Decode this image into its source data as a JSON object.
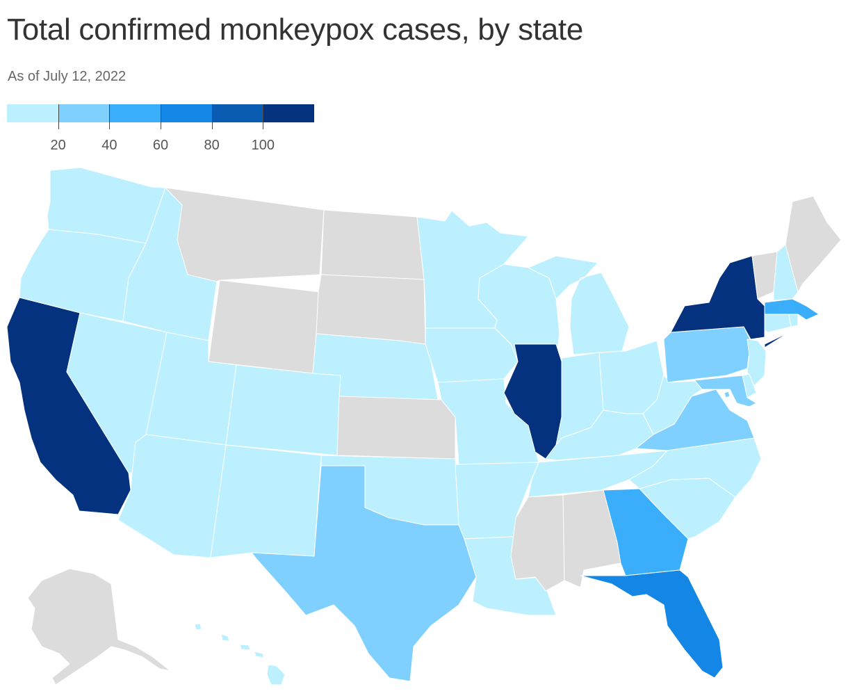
{
  "title": "Total confirmed monkeypox cases, by state",
  "subtitle": "As of July 12, 2022",
  "legend": {
    "colors": [
      "#bdf0ff",
      "#7fd0ff",
      "#3aaefa",
      "#1486e6",
      "#0a5cb3",
      "#04327e"
    ],
    "ticks": [
      {
        "value": 20,
        "label": "20"
      },
      {
        "value": 40,
        "label": "40"
      },
      {
        "value": 60,
        "label": "60"
      },
      {
        "value": 80,
        "label": "80"
      },
      {
        "value": 100,
        "label": "100"
      }
    ],
    "min": 0,
    "max": 120
  },
  "colors": {
    "no_data": "#dcdcdc",
    "bin1": "#bdf0ff",
    "bin2": "#7fd0ff",
    "bin3": "#3aaefa",
    "bin4": "#1486e6",
    "bin6": "#04327e"
  },
  "states": {
    "WA": "bin1",
    "OR": "bin1",
    "CA": "bin6",
    "NV": "bin1",
    "ID": "bin1",
    "MT": "no_data",
    "WY": "no_data",
    "UT": "bin1",
    "AZ": "bin1",
    "CO": "bin1",
    "NM": "bin1",
    "ND": "no_data",
    "SD": "no_data",
    "NE": "bin1",
    "KS": "no_data",
    "OK": "bin1",
    "TX": "bin2",
    "MN": "bin1",
    "IA": "bin1",
    "MO": "bin1",
    "AR": "bin1",
    "LA": "bin1",
    "WI": "bin1",
    "IL": "bin6",
    "MI": "bin1",
    "IN": "bin1",
    "OH": "bin1",
    "KY": "bin1",
    "TN": "bin1",
    "MS": "no_data",
    "AL": "no_data",
    "GA": "bin3",
    "FL": "bin4",
    "SC": "bin1",
    "NC": "bin1",
    "VA": "bin2",
    "WV": "bin1",
    "PA": "bin2",
    "NY": "bin6",
    "VT": "no_data",
    "NH": "bin1",
    "ME": "no_data",
    "MA": "bin3",
    "CT": "bin1",
    "RI": "bin1",
    "NJ": "bin1",
    "DE": "bin1",
    "MD": "bin2",
    "DC": "bin2",
    "AK": "no_data",
    "HI": "bin1"
  }
}
